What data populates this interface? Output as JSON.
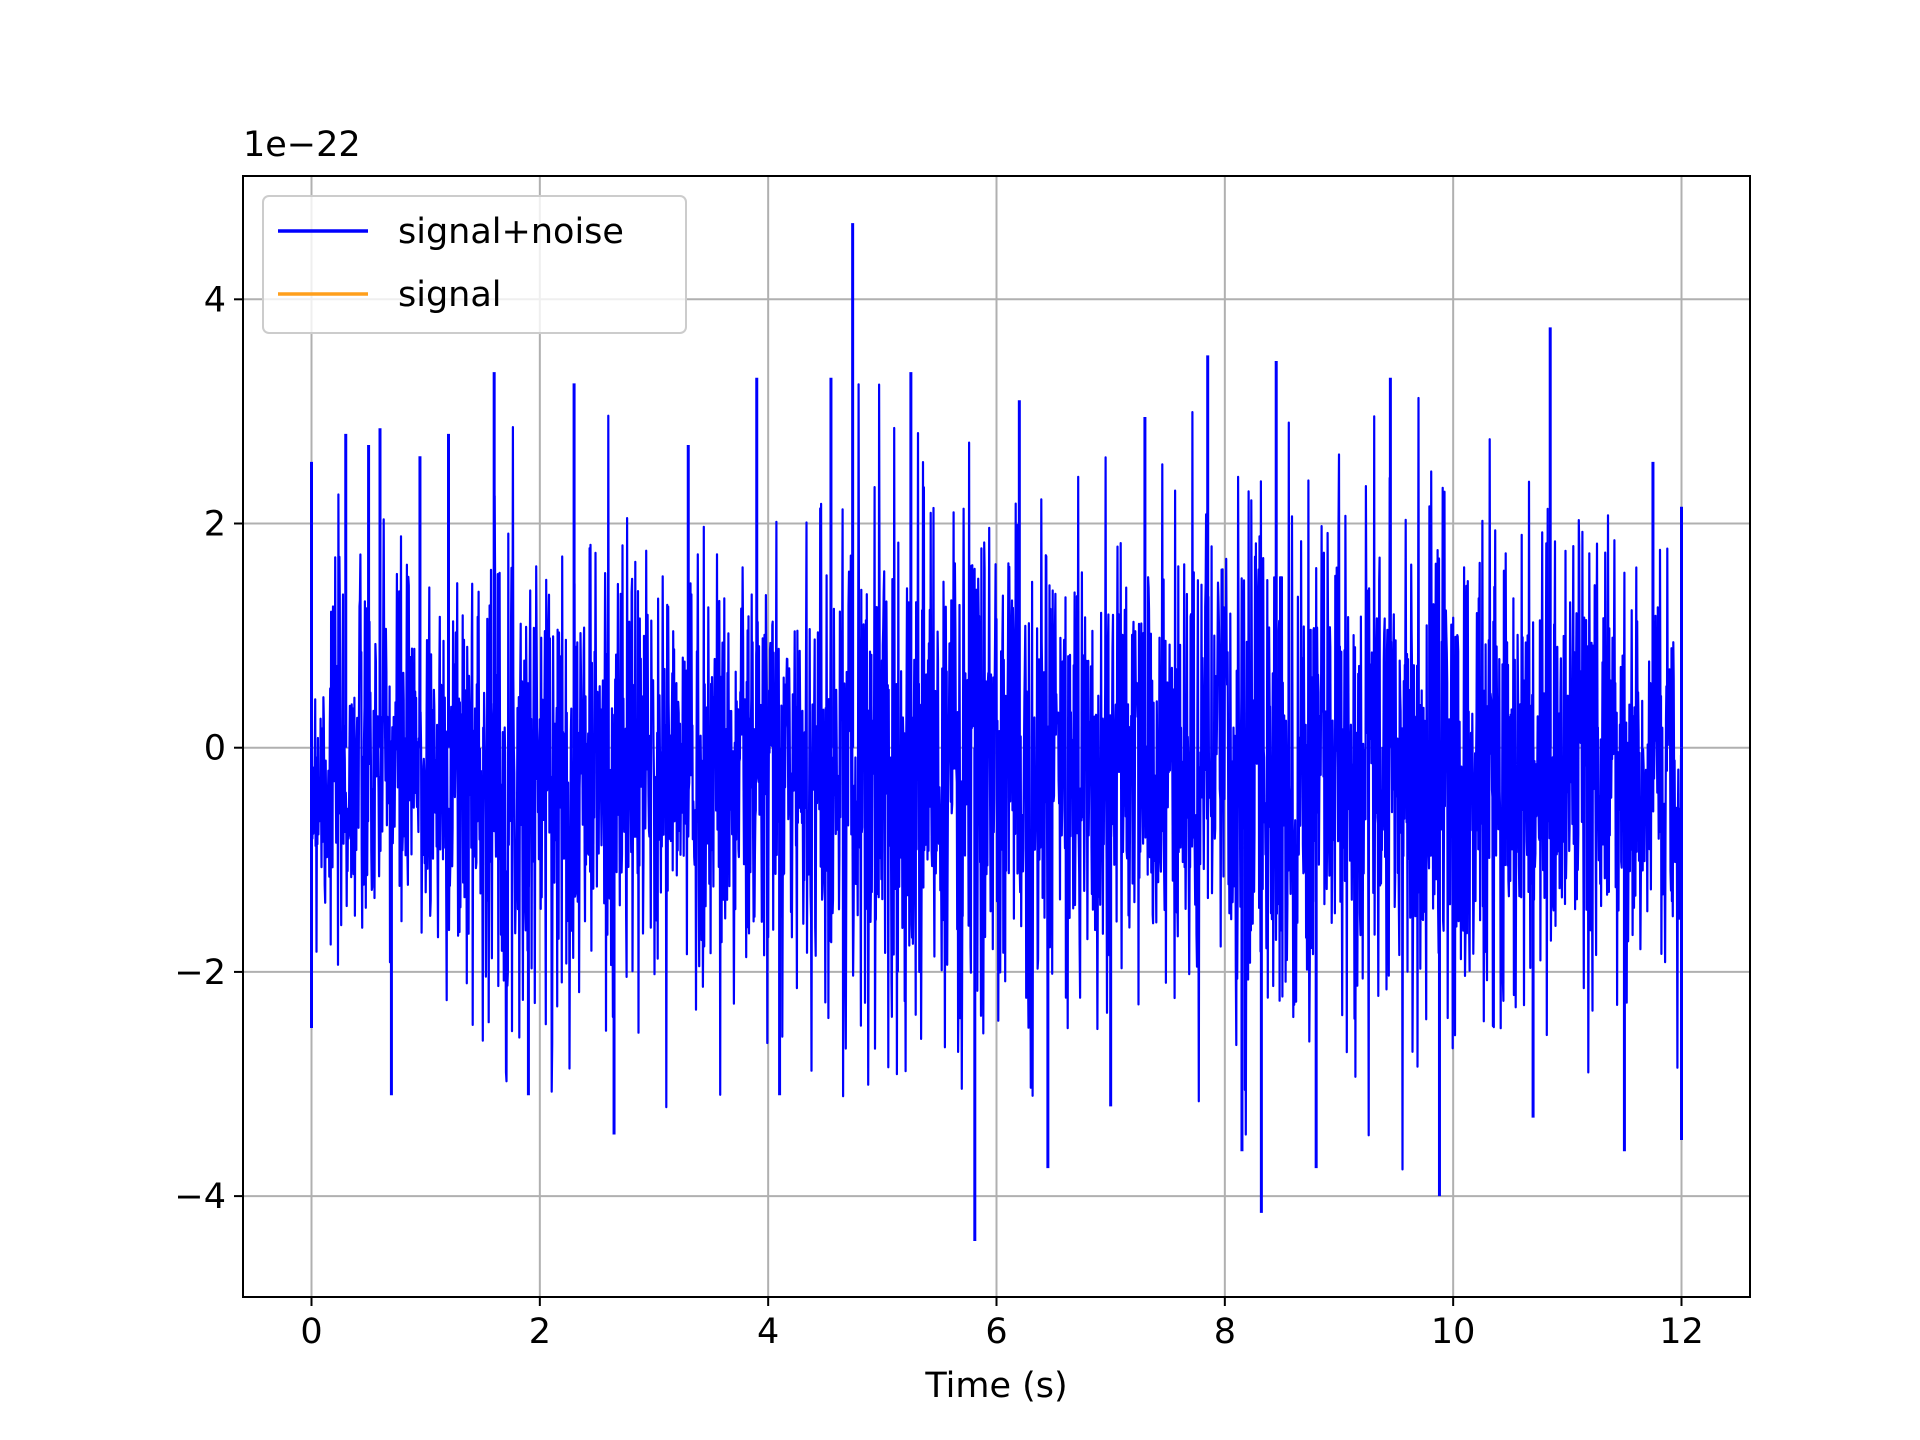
{
  "chart_data": {
    "type": "line",
    "title": "",
    "xlabel": "Time (s)",
    "ylabel": "",
    "y_offset_text": "1e−22",
    "xlim": [
      -0.6,
      12.6
    ],
    "ylim": [
      -4.9,
      5.1
    ],
    "x_ticks": [
      0,
      2,
      4,
      6,
      8,
      10,
      12
    ],
    "x_tick_labels": [
      "0",
      "2",
      "4",
      "6",
      "8",
      "10",
      "12"
    ],
    "y_ticks": [
      -4,
      -2,
      0,
      2,
      4
    ],
    "y_tick_labels": [
      "−4",
      "−2",
      "0",
      "2",
      "4"
    ],
    "grid": true,
    "legend_placement": "upper-left",
    "series": [
      {
        "name": "signal+noise",
        "color": "#0000ff",
        "x_range": [
          0,
          12
        ],
        "description_free": true,
        "envelope_max": [
          [
            0.0,
            2.55
          ],
          [
            0.3,
            2.8
          ],
          [
            0.5,
            2.7
          ],
          [
            0.6,
            2.85
          ],
          [
            0.95,
            2.6
          ],
          [
            1.2,
            2.8
          ],
          [
            1.6,
            3.35
          ],
          [
            2.3,
            3.25
          ],
          [
            3.3,
            2.7
          ],
          [
            3.9,
            3.3
          ],
          [
            4.55,
            3.3
          ],
          [
            4.74,
            4.68
          ],
          [
            5.25,
            3.35
          ],
          [
            6.2,
            3.1
          ],
          [
            7.3,
            2.95
          ],
          [
            7.85,
            3.5
          ],
          [
            8.45,
            3.45
          ],
          [
            9.45,
            3.3
          ],
          [
            10.85,
            3.75
          ],
          [
            11.75,
            2.55
          ],
          [
            12.0,
            2.15
          ]
        ],
        "envelope_min": [
          [
            0.0,
            -2.5
          ],
          [
            0.7,
            -3.1
          ],
          [
            1.9,
            -3.1
          ],
          [
            2.65,
            -3.45
          ],
          [
            4.1,
            -3.1
          ],
          [
            5.81,
            -4.4
          ],
          [
            6.45,
            -3.75
          ],
          [
            7.0,
            -3.2
          ],
          [
            8.15,
            -3.6
          ],
          [
            8.32,
            -4.15
          ],
          [
            8.8,
            -3.75
          ],
          [
            9.88,
            -4.0
          ],
          [
            10.7,
            -3.3
          ],
          [
            11.5,
            -3.6
          ],
          [
            12.0,
            -3.5
          ]
        ]
      },
      {
        "name": "signal",
        "color": "#ff9f1c",
        "x": [
          0,
          12
        ],
        "y": [
          0,
          0
        ]
      }
    ]
  }
}
